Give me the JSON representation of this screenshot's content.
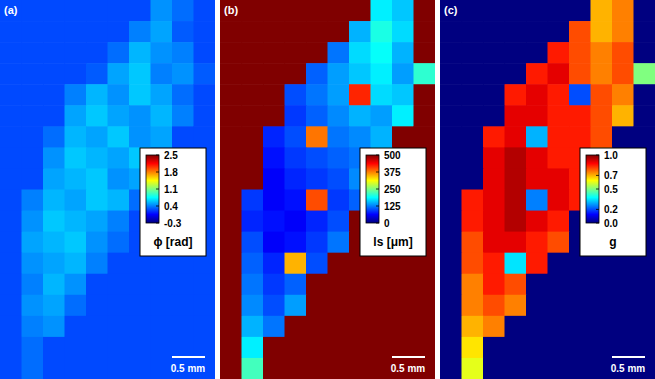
{
  "chart_data": [
    {
      "type": "heatmap",
      "label": "(a)",
      "color": "jet",
      "scale_bar": "0.5 mm",
      "colorbar": {
        "range": [
          -0.3,
          2.5
        ],
        "ticks": [
          2.5,
          1.8,
          1.1,
          0.4,
          -0.3
        ],
        "label": "ϕ [rad]"
      },
      "cells": [
        [
          0.25,
          0.25,
          0.25,
          0.25,
          0.25,
          0.25,
          0.25,
          0.45,
          0.35,
          0.25
        ],
        [
          0.25,
          0.25,
          0.25,
          0.25,
          0.25,
          0.25,
          0.4,
          0.5,
          0.3,
          0.25
        ],
        [
          0.25,
          0.25,
          0.25,
          0.25,
          0.25,
          0.35,
          0.55,
          0.45,
          0.4,
          0.25
        ],
        [
          0.25,
          0.25,
          0.25,
          0.25,
          0.3,
          0.5,
          0.6,
          0.4,
          0.45,
          0.3
        ],
        [
          0.25,
          0.25,
          0.25,
          0.4,
          0.55,
          0.45,
          0.6,
          0.5,
          0.35,
          0.25
        ],
        [
          0.25,
          0.25,
          0.25,
          0.5,
          0.6,
          0.5,
          0.45,
          0.55,
          0.4,
          0.25
        ],
        [
          0.25,
          0.25,
          0.35,
          0.55,
          0.5,
          0.6,
          0.45,
          0.5,
          0.25,
          0.25
        ],
        [
          0.25,
          0.25,
          0.45,
          0.6,
          0.55,
          0.5,
          0.6,
          0.4,
          0.25,
          0.25
        ],
        [
          0.25,
          0.25,
          0.5,
          0.55,
          0.6,
          0.45,
          0.5,
          0.25,
          0.25,
          0.25
        ],
        [
          0.25,
          0.4,
          0.55,
          0.5,
          0.6,
          0.55,
          0.35,
          0.25,
          0.25,
          0.25
        ],
        [
          0.25,
          0.45,
          0.6,
          0.55,
          0.5,
          0.4,
          0.25,
          0.25,
          0.25,
          0.25
        ],
        [
          0.25,
          0.5,
          0.55,
          0.6,
          0.45,
          0.35,
          0.25,
          0.25,
          0.25,
          0.25
        ],
        [
          0.25,
          0.45,
          0.5,
          0.55,
          0.4,
          0.25,
          0.25,
          0.25,
          0.25,
          0.25
        ],
        [
          0.25,
          0.4,
          0.55,
          0.45,
          0.25,
          0.25,
          0.25,
          0.25,
          0.25,
          0.25
        ],
        [
          0.25,
          0.45,
          0.5,
          0.35,
          0.25,
          0.25,
          0.25,
          0.25,
          0.25,
          0.25
        ],
        [
          0.25,
          0.4,
          0.45,
          0.25,
          0.25,
          0.25,
          0.25,
          0.25,
          0.25,
          0.25
        ],
        [
          0.25,
          0.35,
          0.25,
          0.25,
          0.25,
          0.25,
          0.25,
          0.25,
          0.25,
          0.25
        ],
        [
          0.25,
          0.35,
          0.25,
          0.25,
          0.25,
          0.25,
          0.25,
          0.25,
          0.25,
          0.25
        ]
      ]
    },
    {
      "type": "heatmap",
      "label": "(b)",
      "color": "jet",
      "scale_bar": "0.5 mm",
      "colorbar": {
        "range": [
          0,
          500
        ],
        "ticks": [
          500,
          375,
          250,
          125,
          0
        ],
        "label": "ls [μm]"
      },
      "cells": [
        [
          500,
          500,
          500,
          500,
          500,
          500,
          500,
          180,
          160,
          500
        ],
        [
          500,
          500,
          500,
          500,
          500,
          500,
          150,
          200,
          170,
          500
        ],
        [
          500,
          500,
          500,
          500,
          500,
          120,
          170,
          190,
          150,
          500
        ],
        [
          500,
          500,
          500,
          500,
          110,
          140,
          160,
          180,
          140,
          210
        ],
        [
          500,
          500,
          500,
          100,
          120,
          140,
          420,
          170,
          160,
          500
        ],
        [
          500,
          500,
          500,
          90,
          110,
          130,
          150,
          140,
          180,
          500
        ],
        [
          500,
          500,
          80,
          100,
          380,
          120,
          130,
          150,
          500,
          500
        ],
        [
          500,
          500,
          70,
          90,
          100,
          110,
          120,
          160,
          500,
          500
        ],
        [
          500,
          500,
          60,
          80,
          90,
          100,
          130,
          500,
          500,
          500
        ],
        [
          500,
          90,
          60,
          70,
          400,
          90,
          110,
          500,
          500,
          500
        ],
        [
          500,
          80,
          70,
          60,
          80,
          100,
          500,
          500,
          500,
          500
        ],
        [
          500,
          100,
          60,
          70,
          90,
          120,
          500,
          500,
          500,
          500
        ],
        [
          500,
          110,
          80,
          350,
          100,
          500,
          500,
          500,
          500,
          500
        ],
        [
          500,
          120,
          90,
          110,
          500,
          500,
          500,
          500,
          500,
          500
        ],
        [
          500,
          130,
          100,
          140,
          500,
          500,
          500,
          500,
          500,
          500
        ],
        [
          500,
          150,
          120,
          500,
          500,
          500,
          500,
          500,
          500,
          500
        ],
        [
          500,
          180,
          500,
          500,
          500,
          500,
          500,
          500,
          500,
          500
        ],
        [
          500,
          220,
          500,
          500,
          500,
          500,
          500,
          500,
          500,
          500
        ]
      ]
    },
    {
      "type": "heatmap",
      "label": "(c)",
      "color": "jet",
      "scale_bar": "0.5 mm",
      "colorbar": {
        "range": [
          0,
          1
        ],
        "ticks": [
          {
            "value": 1,
            "label": "1.0"
          },
          0.7,
          0.5,
          0.2,
          {
            "value": 0,
            "label": "0.0"
          }
        ],
        "label": "g"
      },
      "cells": [
        [
          0,
          0,
          0,
          0,
          0,
          0,
          0,
          0.7,
          0.75,
          0
        ],
        [
          0,
          0,
          0,
          0,
          0,
          0,
          0.8,
          0.7,
          0.75,
          0
        ],
        [
          0,
          0,
          0,
          0,
          0,
          0.85,
          0.8,
          0.75,
          0.8,
          0
        ],
        [
          0,
          0,
          0,
          0,
          0.85,
          0.9,
          0.8,
          0.75,
          0.8,
          0.5
        ],
        [
          0,
          0,
          0,
          0.85,
          0.9,
          0.85,
          0.2,
          0.8,
          0.75,
          0
        ],
        [
          0,
          0,
          0,
          0.9,
          0.9,
          0.85,
          0.85,
          0.8,
          0.7,
          0
        ],
        [
          0,
          0,
          0.85,
          0.9,
          0.3,
          0.85,
          0.85,
          0.8,
          0,
          0
        ],
        [
          0,
          0,
          0.9,
          0.95,
          0.9,
          0.85,
          0.85,
          0.75,
          0,
          0
        ],
        [
          0,
          0,
          0.9,
          0.95,
          0.9,
          0.9,
          0.85,
          0,
          0,
          0
        ],
        [
          0,
          0.85,
          0.9,
          0.95,
          0.25,
          0.9,
          0.85,
          0,
          0,
          0
        ],
        [
          0,
          0.85,
          0.9,
          0.95,
          0.9,
          0.85,
          0,
          0,
          0,
          0
        ],
        [
          0,
          0.8,
          0.9,
          0.9,
          0.85,
          0.8,
          0,
          0,
          0,
          0
        ],
        [
          0,
          0.8,
          0.85,
          0.35,
          0.85,
          0,
          0,
          0,
          0,
          0
        ],
        [
          0,
          0.75,
          0.85,
          0.8,
          0,
          0,
          0,
          0,
          0,
          0
        ],
        [
          0,
          0.75,
          0.8,
          0.75,
          0,
          0,
          0,
          0,
          0,
          0
        ],
        [
          0,
          0.7,
          0.75,
          0,
          0,
          0,
          0,
          0,
          0,
          0
        ],
        [
          0,
          0.65,
          0,
          0,
          0,
          0,
          0,
          0,
          0,
          0
        ],
        [
          0,
          0.6,
          0,
          0,
          0,
          0,
          0,
          0,
          0,
          0
        ]
      ]
    }
  ]
}
